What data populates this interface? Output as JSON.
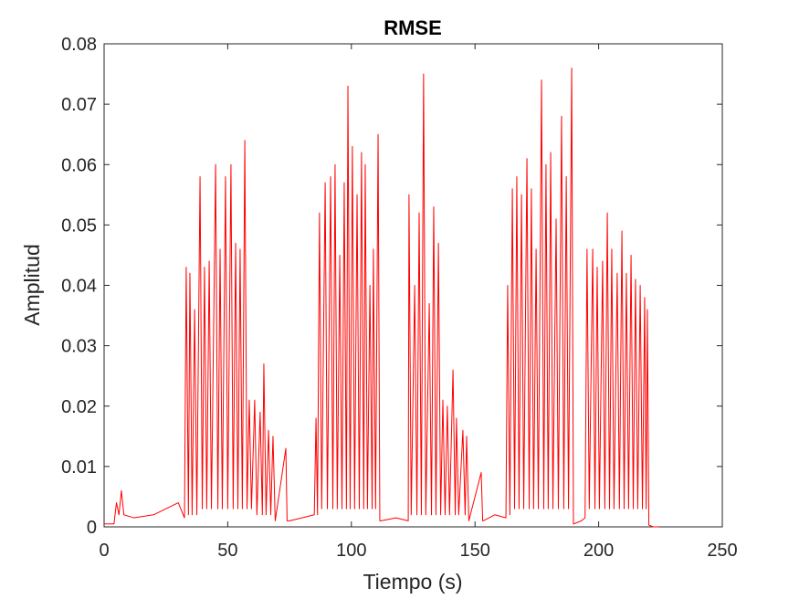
{
  "chart_data": {
    "type": "line",
    "title": "RMSE",
    "xlabel": "Tiempo (s)",
    "ylabel": "Amplitud",
    "xlim": [
      0,
      250
    ],
    "xticks": [
      0,
      50,
      100,
      150,
      200,
      250
    ],
    "ylim": [
      0,
      0.08
    ],
    "yticks": [
      0,
      0.01,
      0.02,
      0.03,
      0.04,
      0.05,
      0.06,
      0.07,
      0.08
    ],
    "grid": false,
    "x": [
      0,
      4,
      5,
      6,
      7,
      8,
      12,
      20,
      25,
      30,
      32.5,
      33.2,
      34.1,
      34.7,
      35.6,
      36.6,
      37.5,
      38.8,
      39.7,
      40.6,
      41.5,
      42.5,
      43.4,
      45.1,
      46.0,
      46.9,
      47.8,
      49.1,
      50.0,
      51.3,
      52.2,
      53.2,
      54.1,
      55.0,
      55.9,
      56.9,
      57.8,
      58.7,
      59.6,
      60.9,
      61.8,
      63.1,
      64.0,
      64.6,
      65.5,
      66.5,
      67.4,
      68.3,
      69.2,
      73.5,
      74.0,
      75,
      80,
      85,
      85.7,
      86.3,
      87.1,
      88.0,
      89.4,
      90.3,
      91.6,
      92.5,
      93.4,
      94.3,
      95.3,
      96.2,
      97.1,
      98.0,
      98.6,
      99.5,
      100.4,
      101.3,
      102.3,
      103.2,
      104.1,
      105.0,
      105.6,
      106.5,
      107.5,
      108.4,
      108.9,
      109.8,
      110.8,
      111.5,
      112,
      118,
      123,
      123.3,
      124.2,
      125.6,
      126.5,
      127.4,
      128.3,
      129.2,
      130.1,
      131.5,
      132.4,
      133.3,
      134.2,
      135.2,
      136.1,
      137.0,
      137.9,
      138.8,
      139.7,
      141.1,
      142.0,
      142.5,
      143.4,
      145.1,
      146.0,
      146.6,
      147.5,
      152.5,
      153.1,
      153.3,
      158,
      162.5,
      163.2,
      164.1,
      165.1,
      166.0,
      166.9,
      167.8,
      168.8,
      169.7,
      171.0,
      171.9,
      172.8,
      173.7,
      174.7,
      175.6,
      176.9,
      177.8,
      178.7,
      179.6,
      180.6,
      181.5,
      182.8,
      183.7,
      185.0,
      185.9,
      186.9,
      187.8,
      189.1,
      189.8,
      190,
      193,
      194.5,
      195.3,
      196.2,
      197.6,
      198.5,
      199.4,
      200.3,
      201.6,
      202.5,
      203.5,
      204.4,
      205.3,
      206.2,
      207.5,
      208.4,
      209.4,
      210.3,
      211.2,
      212.1,
      213.1,
      214.0,
      214.9,
      215.8,
      216.8,
      217.7,
      218.6,
      219.2,
      219.7,
      220.3,
      222,
      224.5
    ],
    "series": [
      {
        "name": "RMSE",
        "color": "#ff0000",
        "values": [
          0.0005,
          0.0005,
          0.004,
          0.002,
          0.006,
          0.002,
          0.0015,
          0.002,
          0.003,
          0.004,
          0.0015,
          0.043,
          0.002,
          0.042,
          0.002,
          0.036,
          0.002,
          0.058,
          0.003,
          0.043,
          0.003,
          0.044,
          0.003,
          0.06,
          0.003,
          0.046,
          0.003,
          0.058,
          0.003,
          0.06,
          0.003,
          0.047,
          0.003,
          0.046,
          0.003,
          0.064,
          0.003,
          0.021,
          0.003,
          0.021,
          0.002,
          0.019,
          0.002,
          0.027,
          0.002,
          0.016,
          0.002,
          0.015,
          0.001,
          0.013,
          0.001,
          0.001,
          0.0015,
          0.002,
          0.018,
          0.002,
          0.052,
          0.003,
          0.057,
          0.003,
          0.058,
          0.003,
          0.06,
          0.003,
          0.045,
          0.003,
          0.057,
          0.003,
          0.073,
          0.003,
          0.063,
          0.003,
          0.055,
          0.003,
          0.062,
          0.003,
          0.06,
          0.003,
          0.04,
          0.003,
          0.046,
          0.003,
          0.065,
          0.001,
          0.001,
          0.0015,
          0.001,
          0.055,
          0.002,
          0.04,
          0.002,
          0.052,
          0.002,
          0.075,
          0.002,
          0.037,
          0.002,
          0.053,
          0.002,
          0.047,
          0.002,
          0.021,
          0.002,
          0.02,
          0.002,
          0.026,
          0.002,
          0.018,
          0.002,
          0.016,
          0.002,
          0.015,
          0.001,
          0.009,
          0.001,
          0.001,
          0.002,
          0.0015,
          0.04,
          0.002,
          0.056,
          0.003,
          0.058,
          0.003,
          0.055,
          0.003,
          0.061,
          0.003,
          0.056,
          0.003,
          0.046,
          0.003,
          0.074,
          0.003,
          0.06,
          0.003,
          0.062,
          0.003,
          0.051,
          0.003,
          0.068,
          0.003,
          0.058,
          0.003,
          0.076,
          0.0005,
          0.0005,
          0.001,
          0.0015,
          0.046,
          0.003,
          0.046,
          0.003,
          0.043,
          0.003,
          0.044,
          0.003,
          0.052,
          0.003,
          0.046,
          0.003,
          0.042,
          0.003,
          0.049,
          0.003,
          0.042,
          0.003,
          0.045,
          0.003,
          0.041,
          0.003,
          0.04,
          0.003,
          0.038,
          0.003,
          0.036,
          0.0003,
          0,
          0
        ]
      }
    ]
  }
}
